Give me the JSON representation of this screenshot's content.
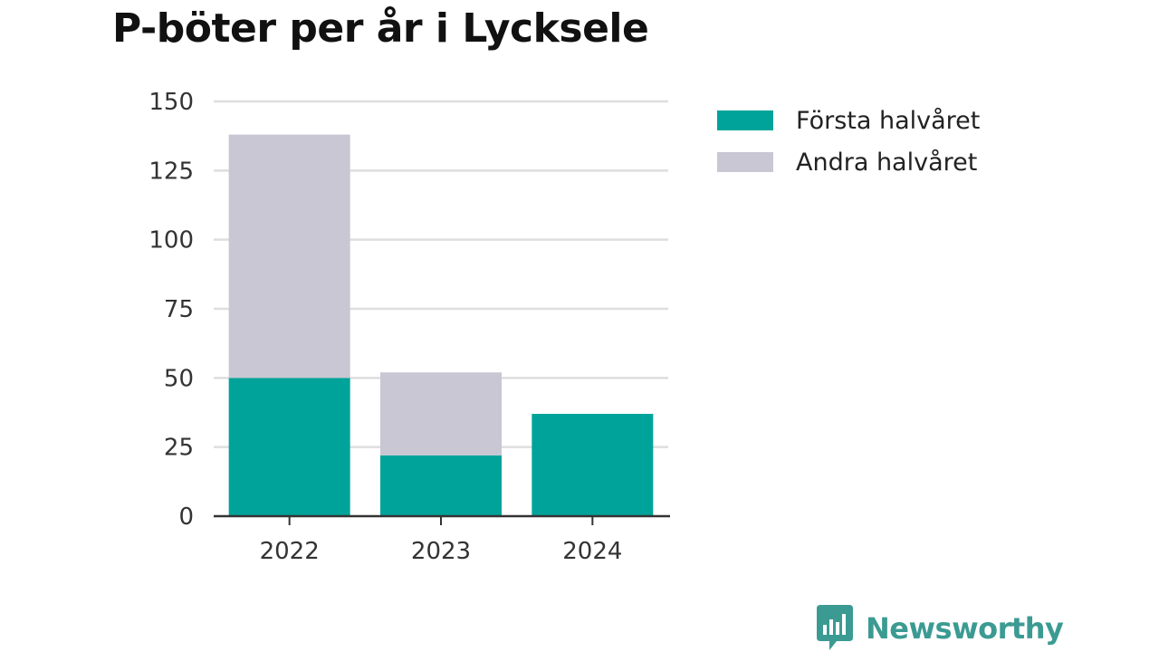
{
  "colors": {
    "first_half": "#00A39A",
    "second_half": "#C8C7D3",
    "grid": "#DEDEDE",
    "axis": "#333333",
    "brand": "#3B9B93"
  },
  "chart_data": {
    "type": "bar",
    "stacked": true,
    "title": "P-böter per år i Lycksele",
    "categories": [
      "2022",
      "2023",
      "2024"
    ],
    "series": [
      {
        "name": "Första halvåret",
        "values": [
          50,
          22,
          37
        ]
      },
      {
        "name": "Andra halvåret",
        "values": [
          88,
          30,
          0
        ]
      }
    ],
    "yticks": [
      0,
      25,
      50,
      75,
      100,
      125,
      150
    ],
    "ylim": [
      0,
      150
    ],
    "xlabel": "",
    "ylabel": "",
    "grid": true,
    "legend_position": "right"
  },
  "brand": {
    "name": "Newsworthy",
    "logo_icon": "bar-chart-speech-bubble-icon"
  }
}
